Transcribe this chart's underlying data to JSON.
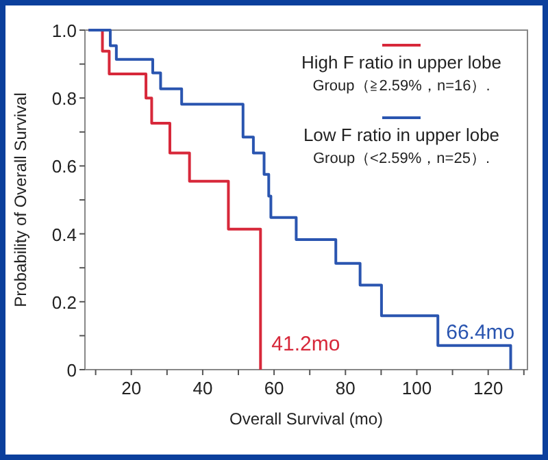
{
  "chart_data": {
    "type": "step",
    "xlabel": "Overall Survival (mo)",
    "ylabel": "Probability of Overall Survival",
    "xlim": [
      7,
      131
    ],
    "xticks": [
      {
        "value": 10,
        "label": null
      },
      20,
      {
        "value": 30,
        "label": null
      },
      40,
      {
        "value": 50,
        "label": null
      },
      60,
      {
        "value": 70,
        "label": null
      },
      80,
      {
        "value": 90,
        "label": null
      },
      100,
      {
        "value": 110,
        "label": null
      },
      120,
      {
        "value": 130,
        "label": null
      }
    ],
    "ylim": [
      0,
      1
    ],
    "yticks": [
      0,
      {
        "value": 0.1,
        "label": null
      },
      0.2,
      {
        "value": 0.3,
        "label": null
      },
      0.4,
      {
        "value": 0.5,
        "label": null
      },
      0.6,
      {
        "value": 0.7,
        "label": null
      },
      0.8,
      {
        "value": 0.9,
        "label": null
      },
      {
        "value": 1,
        "label": "1.0"
      }
    ],
    "grid": false,
    "legend": "top right",
    "series": [
      {
        "name": "High F ratio in upper lobe\nGroup（≧2.59%，n=16）.",
        "color": "#d7283a",
        "x": [
          8,
          11.9,
          13.8,
          24.1,
          25.7,
          30.8,
          36.3,
          47.2,
          56.2
        ],
        "values": [
          1,
          0.938,
          0.871,
          0.8,
          0.726,
          0.638,
          0.555,
          0.414,
          0
        ]
      },
      {
        "name": "Low F ratio in upper lobe\nGroup（<2.59%，n=25）.",
        "color": "#2a55b0",
        "x": [
          8,
          14.1,
          15.8,
          26.0,
          28.2,
          34.1,
          51.3,
          54.2,
          57.2,
          58.5,
          59.1,
          66.2,
          77.3,
          84.1,
          90.1,
          105.9,
          126.3
        ],
        "values": [
          1,
          0.954,
          0.914,
          0.874,
          0.827,
          0.782,
          0.685,
          0.638,
          0.575,
          0.511,
          0.448,
          0.383,
          0.313,
          0.249,
          0.159,
          0.071,
          0
        ]
      }
    ],
    "annotations": [
      "41.2mo",
      "66.4mo"
    ]
  }
}
